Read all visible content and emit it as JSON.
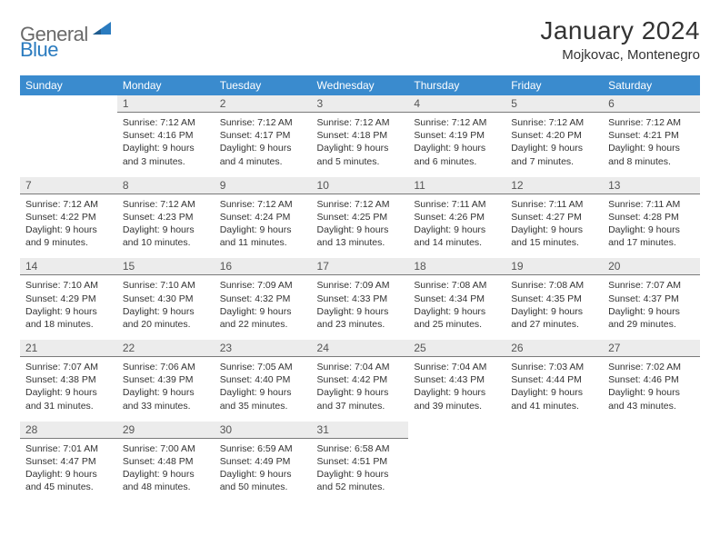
{
  "brand": {
    "part1": "General",
    "part2": "Blue"
  },
  "title": "January 2024",
  "location": "Mojkovac, Montenegro",
  "colors": {
    "header_bg": "#3a8bce",
    "header_text": "#ffffff",
    "daynum_bg": "#ececec",
    "daynum_border": "#7a7a7a",
    "body_text": "#333333",
    "logo_gray": "#6a6a6a",
    "logo_blue": "#2a7bbf"
  },
  "weekdays": [
    "Sunday",
    "Monday",
    "Tuesday",
    "Wednesday",
    "Thursday",
    "Friday",
    "Saturday"
  ],
  "weeks": [
    [
      null,
      {
        "n": "1",
        "sr": "Sunrise: 7:12 AM",
        "ss": "Sunset: 4:16 PM",
        "dl1": "Daylight: 9 hours",
        "dl2": "and 3 minutes."
      },
      {
        "n": "2",
        "sr": "Sunrise: 7:12 AM",
        "ss": "Sunset: 4:17 PM",
        "dl1": "Daylight: 9 hours",
        "dl2": "and 4 minutes."
      },
      {
        "n": "3",
        "sr": "Sunrise: 7:12 AM",
        "ss": "Sunset: 4:18 PM",
        "dl1": "Daylight: 9 hours",
        "dl2": "and 5 minutes."
      },
      {
        "n": "4",
        "sr": "Sunrise: 7:12 AM",
        "ss": "Sunset: 4:19 PM",
        "dl1": "Daylight: 9 hours",
        "dl2": "and 6 minutes."
      },
      {
        "n": "5",
        "sr": "Sunrise: 7:12 AM",
        "ss": "Sunset: 4:20 PM",
        "dl1": "Daylight: 9 hours",
        "dl2": "and 7 minutes."
      },
      {
        "n": "6",
        "sr": "Sunrise: 7:12 AM",
        "ss": "Sunset: 4:21 PM",
        "dl1": "Daylight: 9 hours",
        "dl2": "and 8 minutes."
      }
    ],
    [
      {
        "n": "7",
        "sr": "Sunrise: 7:12 AM",
        "ss": "Sunset: 4:22 PM",
        "dl1": "Daylight: 9 hours",
        "dl2": "and 9 minutes."
      },
      {
        "n": "8",
        "sr": "Sunrise: 7:12 AM",
        "ss": "Sunset: 4:23 PM",
        "dl1": "Daylight: 9 hours",
        "dl2": "and 10 minutes."
      },
      {
        "n": "9",
        "sr": "Sunrise: 7:12 AM",
        "ss": "Sunset: 4:24 PM",
        "dl1": "Daylight: 9 hours",
        "dl2": "and 11 minutes."
      },
      {
        "n": "10",
        "sr": "Sunrise: 7:12 AM",
        "ss": "Sunset: 4:25 PM",
        "dl1": "Daylight: 9 hours",
        "dl2": "and 13 minutes."
      },
      {
        "n": "11",
        "sr": "Sunrise: 7:11 AM",
        "ss": "Sunset: 4:26 PM",
        "dl1": "Daylight: 9 hours",
        "dl2": "and 14 minutes."
      },
      {
        "n": "12",
        "sr": "Sunrise: 7:11 AM",
        "ss": "Sunset: 4:27 PM",
        "dl1": "Daylight: 9 hours",
        "dl2": "and 15 minutes."
      },
      {
        "n": "13",
        "sr": "Sunrise: 7:11 AM",
        "ss": "Sunset: 4:28 PM",
        "dl1": "Daylight: 9 hours",
        "dl2": "and 17 minutes."
      }
    ],
    [
      {
        "n": "14",
        "sr": "Sunrise: 7:10 AM",
        "ss": "Sunset: 4:29 PM",
        "dl1": "Daylight: 9 hours",
        "dl2": "and 18 minutes."
      },
      {
        "n": "15",
        "sr": "Sunrise: 7:10 AM",
        "ss": "Sunset: 4:30 PM",
        "dl1": "Daylight: 9 hours",
        "dl2": "and 20 minutes."
      },
      {
        "n": "16",
        "sr": "Sunrise: 7:09 AM",
        "ss": "Sunset: 4:32 PM",
        "dl1": "Daylight: 9 hours",
        "dl2": "and 22 minutes."
      },
      {
        "n": "17",
        "sr": "Sunrise: 7:09 AM",
        "ss": "Sunset: 4:33 PM",
        "dl1": "Daylight: 9 hours",
        "dl2": "and 23 minutes."
      },
      {
        "n": "18",
        "sr": "Sunrise: 7:08 AM",
        "ss": "Sunset: 4:34 PM",
        "dl1": "Daylight: 9 hours",
        "dl2": "and 25 minutes."
      },
      {
        "n": "19",
        "sr": "Sunrise: 7:08 AM",
        "ss": "Sunset: 4:35 PM",
        "dl1": "Daylight: 9 hours",
        "dl2": "and 27 minutes."
      },
      {
        "n": "20",
        "sr": "Sunrise: 7:07 AM",
        "ss": "Sunset: 4:37 PM",
        "dl1": "Daylight: 9 hours",
        "dl2": "and 29 minutes."
      }
    ],
    [
      {
        "n": "21",
        "sr": "Sunrise: 7:07 AM",
        "ss": "Sunset: 4:38 PM",
        "dl1": "Daylight: 9 hours",
        "dl2": "and 31 minutes."
      },
      {
        "n": "22",
        "sr": "Sunrise: 7:06 AM",
        "ss": "Sunset: 4:39 PM",
        "dl1": "Daylight: 9 hours",
        "dl2": "and 33 minutes."
      },
      {
        "n": "23",
        "sr": "Sunrise: 7:05 AM",
        "ss": "Sunset: 4:40 PM",
        "dl1": "Daylight: 9 hours",
        "dl2": "and 35 minutes."
      },
      {
        "n": "24",
        "sr": "Sunrise: 7:04 AM",
        "ss": "Sunset: 4:42 PM",
        "dl1": "Daylight: 9 hours",
        "dl2": "and 37 minutes."
      },
      {
        "n": "25",
        "sr": "Sunrise: 7:04 AM",
        "ss": "Sunset: 4:43 PM",
        "dl1": "Daylight: 9 hours",
        "dl2": "and 39 minutes."
      },
      {
        "n": "26",
        "sr": "Sunrise: 7:03 AM",
        "ss": "Sunset: 4:44 PM",
        "dl1": "Daylight: 9 hours",
        "dl2": "and 41 minutes."
      },
      {
        "n": "27",
        "sr": "Sunrise: 7:02 AM",
        "ss": "Sunset: 4:46 PM",
        "dl1": "Daylight: 9 hours",
        "dl2": "and 43 minutes."
      }
    ],
    [
      {
        "n": "28",
        "sr": "Sunrise: 7:01 AM",
        "ss": "Sunset: 4:47 PM",
        "dl1": "Daylight: 9 hours",
        "dl2": "and 45 minutes."
      },
      {
        "n": "29",
        "sr": "Sunrise: 7:00 AM",
        "ss": "Sunset: 4:48 PM",
        "dl1": "Daylight: 9 hours",
        "dl2": "and 48 minutes."
      },
      {
        "n": "30",
        "sr": "Sunrise: 6:59 AM",
        "ss": "Sunset: 4:49 PM",
        "dl1": "Daylight: 9 hours",
        "dl2": "and 50 minutes."
      },
      {
        "n": "31",
        "sr": "Sunrise: 6:58 AM",
        "ss": "Sunset: 4:51 PM",
        "dl1": "Daylight: 9 hours",
        "dl2": "and 52 minutes."
      },
      null,
      null,
      null
    ]
  ]
}
